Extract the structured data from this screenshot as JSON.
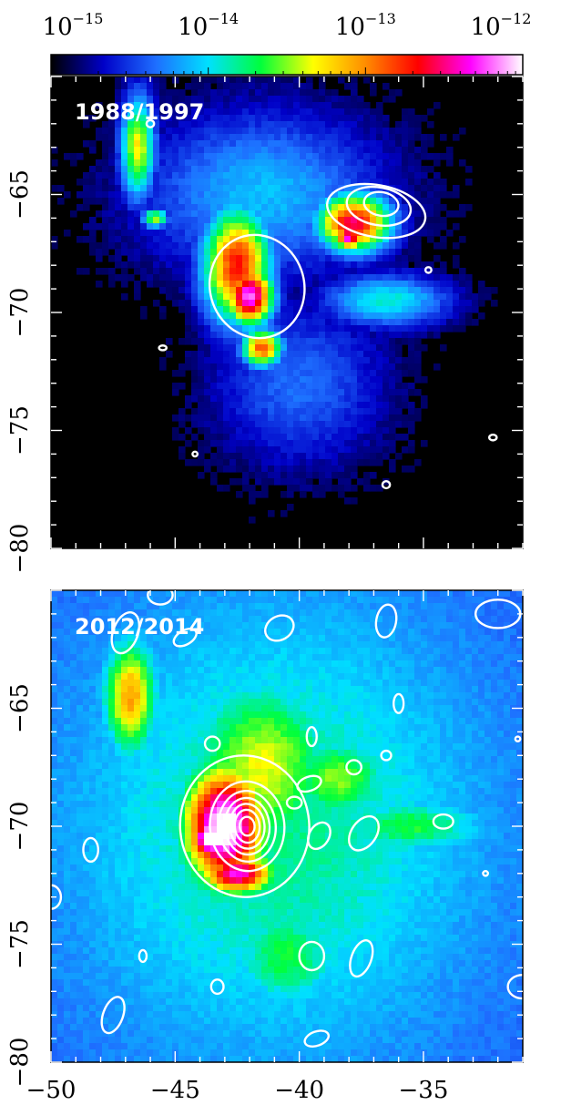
{
  "chart_data": [
    {
      "type": "colorbar",
      "scale": "log",
      "range": [
        1e-15,
        1e-12
      ],
      "tick_labels": [
        {
          "base": "10",
          "exp": "−15"
        },
        {
          "base": "10",
          "exp": "−14"
        },
        {
          "base": "10",
          "exp": "−13"
        },
        {
          "base": "10",
          "exp": "−12"
        }
      ],
      "colormap": [
        "#000000",
        "#0000c8",
        "#1e6eff",
        "#00e0ff",
        "#00ff3c",
        "#ffff00",
        "#ff8c00",
        "#ff0000",
        "#ff00ff",
        "#ffffff"
      ]
    },
    {
      "type": "heatmap",
      "label": "1988/1997",
      "xlim": [
        -50,
        -31
      ],
      "ylim": [
        -80,
        -60
      ],
      "xticks": [
        -50,
        -45,
        -40,
        -35
      ],
      "yticks": [
        -80,
        -75,
        -70,
        -65
      ],
      "ytick_labels": [
        "−80",
        "−75",
        "−70",
        "−65"
      ],
      "sources": [
        {
          "x": -46.5,
          "y": -63.0,
          "sx": 0.5,
          "sy": 1.6,
          "level": 0.55
        },
        {
          "x": -42.5,
          "y": -68.0,
          "sx": 1.0,
          "sy": 1.8,
          "level": 0.75
        },
        {
          "x": -42.0,
          "y": -69.3,
          "sx": 0.7,
          "sy": 0.9,
          "level": 0.92
        },
        {
          "x": -41.5,
          "y": -71.5,
          "sx": 0.6,
          "sy": 0.6,
          "level": 0.7
        },
        {
          "x": -37.8,
          "y": -66.2,
          "sx": 1.1,
          "sy": 0.9,
          "level": 0.8
        },
        {
          "x": -38.0,
          "y": -66.8,
          "sx": 0.4,
          "sy": 0.4,
          "level": 0.9
        },
        {
          "x": -36.5,
          "y": -69.5,
          "sx": 1.8,
          "sy": 0.8,
          "level": 0.35
        },
        {
          "x": -41.5,
          "y": -65.0,
          "sx": 3.5,
          "sy": 2.5,
          "level": 0.28
        },
        {
          "x": -40.0,
          "y": -73.0,
          "sx": 2.5,
          "sy": 2.5,
          "level": 0.2
        },
        {
          "x": -45.8,
          "y": -66.0,
          "sx": 0.4,
          "sy": 0.3,
          "level": 0.5
        }
      ],
      "contours": [
        {
          "cx": -41.7,
          "cy": -68.9,
          "rx": 1.9,
          "ry": 2.2,
          "rot": -15
        },
        {
          "cx": -36.9,
          "cy": -65.7,
          "rx": 2.0,
          "ry": 1.1,
          "rot": 10
        },
        {
          "cx": -36.8,
          "cy": -65.5,
          "rx": 1.3,
          "ry": 0.8,
          "rot": 10
        },
        {
          "cx": -36.7,
          "cy": -65.4,
          "rx": 0.7,
          "ry": 0.5,
          "rot": 10
        },
        {
          "cx": -46.0,
          "cy": -62.0,
          "rx": 0.15,
          "ry": 0.15,
          "rot": 0
        },
        {
          "cx": -45.5,
          "cy": -71.5,
          "rx": 0.15,
          "ry": 0.1,
          "rot": 0
        },
        {
          "cx": -36.5,
          "cy": -77.3,
          "rx": 0.15,
          "ry": 0.15,
          "rot": 0
        },
        {
          "cx": -32.2,
          "cy": -75.3,
          "rx": 0.15,
          "ry": 0.12,
          "rot": 0
        },
        {
          "cx": -34.8,
          "cy": -68.2,
          "rx": 0.12,
          "ry": 0.12,
          "rot": 0
        },
        {
          "cx": -44.2,
          "cy": -76.0,
          "rx": 0.1,
          "ry": 0.1,
          "rot": 0
        }
      ]
    },
    {
      "type": "heatmap",
      "label": "2012/2014",
      "xlim": [
        -50,
        -31
      ],
      "ylim": [
        -80,
        -60
      ],
      "xticks": [
        -50,
        -45,
        -40,
        -35
      ],
      "xtick_labels": [
        "−50",
        "−45",
        "−40",
        "−35"
      ],
      "yticks": [
        -80,
        -75,
        -70,
        -65
      ],
      "ytick_labels": [
        "−80",
        "−75",
        "−70",
        "−65"
      ],
      "sources": [
        {
          "x": -46.8,
          "y": -64.5,
          "sx": 0.7,
          "sy": 1.6,
          "level": 0.45
        },
        {
          "x": -43.0,
          "y": -70.0,
          "sx": 1.1,
          "sy": 1.7,
          "level": 0.85
        },
        {
          "x": -43.5,
          "y": -70.5,
          "sx": 0.6,
          "sy": 0.6,
          "level": 0.95
        },
        {
          "x": -42.5,
          "y": -72.0,
          "sx": 1.0,
          "sy": 0.6,
          "level": 0.7
        },
        {
          "x": -41.5,
          "y": -67.5,
          "sx": 2.0,
          "sy": 2.5,
          "level": 0.35
        },
        {
          "x": -38.5,
          "y": -68.0,
          "sx": 1.5,
          "sy": 1.2,
          "level": 0.3
        },
        {
          "x": -35.5,
          "y": -70.0,
          "sx": 2.0,
          "sy": 0.8,
          "level": 0.25
        },
        {
          "x": -40.5,
          "y": -75.5,
          "sx": 1.5,
          "sy": 1.5,
          "level": 0.25
        },
        {
          "x": -41.0,
          "y": -70.0,
          "sx": 6.0,
          "sy": 7.0,
          "level": 0.2
        }
      ],
      "contours": [
        {
          "cx": -42.2,
          "cy": -70.0,
          "rx": 2.6,
          "ry": 3.0,
          "rot": -5
        },
        {
          "cx": -42.1,
          "cy": -70.0,
          "rx": 1.5,
          "ry": 1.9,
          "rot": -5
        },
        {
          "cx": -42.1,
          "cy": -70.0,
          "rx": 1.15,
          "ry": 1.5,
          "rot": -5
        },
        {
          "cx": -42.1,
          "cy": -70.0,
          "rx": 0.9,
          "ry": 1.2,
          "rot": -5
        },
        {
          "cx": -42.1,
          "cy": -70.0,
          "rx": 0.7,
          "ry": 0.95,
          "rot": -5
        },
        {
          "cx": -42.1,
          "cy": -70.0,
          "rx": 0.5,
          "ry": 0.7,
          "rot": -5
        },
        {
          "cx": -42.1,
          "cy": -70.0,
          "rx": 0.3,
          "ry": 0.4,
          "rot": -5
        },
        {
          "cx": -47.0,
          "cy": -61.8,
          "rx": 0.5,
          "ry": 0.9,
          "rot": 20
        },
        {
          "cx": -45.6,
          "cy": -60.2,
          "rx": 0.5,
          "ry": 0.4,
          "rot": 0
        },
        {
          "cx": -44.6,
          "cy": -62.0,
          "rx": 0.5,
          "ry": 0.3,
          "rot": -30
        },
        {
          "cx": -40.8,
          "cy": -61.6,
          "rx": 0.6,
          "ry": 0.5,
          "rot": -30
        },
        {
          "cx": -36.5,
          "cy": -61.3,
          "rx": 0.4,
          "ry": 0.7,
          "rot": 10
        },
        {
          "cx": -32.0,
          "cy": -61.0,
          "rx": 0.9,
          "ry": 0.6,
          "rot": 0
        },
        {
          "cx": -36.0,
          "cy": -64.8,
          "rx": 0.2,
          "ry": 0.4,
          "rot": 0
        },
        {
          "cx": -43.5,
          "cy": -66.5,
          "rx": 0.3,
          "ry": 0.3,
          "rot": 0
        },
        {
          "cx": -39.5,
          "cy": -66.2,
          "rx": 0.2,
          "ry": 0.4,
          "rot": 0
        },
        {
          "cx": -39.6,
          "cy": -68.2,
          "rx": 0.5,
          "ry": 0.3,
          "rot": -20
        },
        {
          "cx": -40.2,
          "cy": -69.0,
          "rx": 0.3,
          "ry": 0.25,
          "rot": 0
        },
        {
          "cx": -37.8,
          "cy": -67.5,
          "rx": 0.3,
          "ry": 0.3,
          "rot": 0
        },
        {
          "cx": -36.5,
          "cy": -67.0,
          "rx": 0.2,
          "ry": 0.2,
          "rot": 0
        },
        {
          "cx": -39.2,
          "cy": -70.4,
          "rx": 0.4,
          "ry": 0.6,
          "rot": 30
        },
        {
          "cx": -37.4,
          "cy": -70.3,
          "rx": 0.5,
          "ry": 0.8,
          "rot": 35
        },
        {
          "cx": -34.2,
          "cy": -69.8,
          "rx": 0.4,
          "ry": 0.3,
          "rot": 0
        },
        {
          "cx": -48.4,
          "cy": -71.0,
          "rx": 0.3,
          "ry": 0.5,
          "rot": 0
        },
        {
          "cx": -50.0,
          "cy": -73.0,
          "rx": 0.4,
          "ry": 0.5,
          "rot": 0
        },
        {
          "cx": -46.3,
          "cy": -75.5,
          "rx": 0.15,
          "ry": 0.25,
          "rot": 0
        },
        {
          "cx": -43.3,
          "cy": -76.8,
          "rx": 0.25,
          "ry": 0.3,
          "rot": 0
        },
        {
          "cx": -39.5,
          "cy": -75.5,
          "rx": 0.5,
          "ry": 0.6,
          "rot": 0
        },
        {
          "cx": -37.5,
          "cy": -75.6,
          "rx": 0.4,
          "ry": 0.8,
          "rot": 20
        },
        {
          "cx": -47.5,
          "cy": -78.0,
          "rx": 0.4,
          "ry": 0.8,
          "rot": 20
        },
        {
          "cx": -39.3,
          "cy": -79.0,
          "rx": 0.5,
          "ry": 0.3,
          "rot": -20
        },
        {
          "cx": -32.5,
          "cy": -72.0,
          "rx": 0.1,
          "ry": 0.1,
          "rot": 0
        },
        {
          "cx": -31.0,
          "cy": -76.8,
          "rx": 0.6,
          "ry": 0.5,
          "rot": 0
        },
        {
          "cx": -31.2,
          "cy": -66.3,
          "rx": 0.1,
          "ry": 0.1,
          "rot": 0
        }
      ]
    }
  ]
}
